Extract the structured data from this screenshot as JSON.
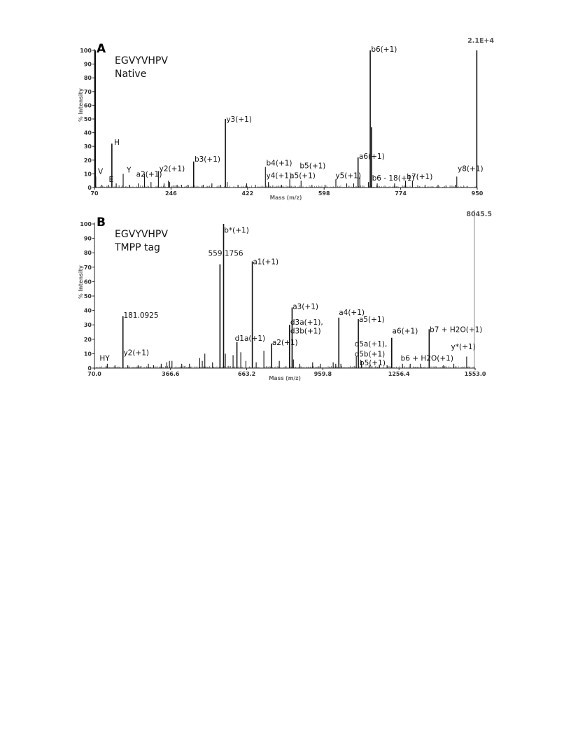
{
  "chart_data": [
    {
      "type": "bar",
      "panel_label": "A",
      "sequence": "EGVYVHPV",
      "subtitle": "Native",
      "xlabel": "Mass (m/z)",
      "ylabel": "% Intensity",
      "max_intensity_label": "2.1E+4",
      "xlim": [
        70,
        950
      ],
      "ylim": [
        0,
        100
      ],
      "x_ticks": [
        "70",
        "246",
        "422",
        "598",
        "774",
        "950"
      ],
      "y_ticks": [
        "0",
        "10",
        "20",
        "30",
        "40",
        "50",
        "60",
        "70",
        "80",
        "90",
        "100"
      ],
      "peaks": [
        {
          "mz": 72,
          "intensity": 100
        },
        {
          "mz": 73,
          "intensity": 8
        },
        {
          "mz": 86,
          "intensity": 2
        },
        {
          "mz": 102,
          "intensity": 2
        },
        {
          "mz": 110,
          "intensity": 32
        },
        {
          "mz": 120,
          "intensity": 3
        },
        {
          "mz": 136,
          "intensity": 10
        },
        {
          "mz": 150,
          "intensity": 2
        },
        {
          "mz": 171,
          "intensity": 3
        },
        {
          "mz": 185,
          "intensity": 10
        },
        {
          "mz": 200,
          "intensity": 4
        },
        {
          "mz": 217,
          "intensity": 12
        },
        {
          "mz": 230,
          "intensity": 3
        },
        {
          "mz": 240,
          "intensity": 5
        },
        {
          "mz": 243,
          "intensity": 4
        },
        {
          "mz": 260,
          "intensity": 2
        },
        {
          "mz": 270,
          "intensity": 2
        },
        {
          "mz": 285,
          "intensity": 2
        },
        {
          "mz": 298,
          "intensity": 19
        },
        {
          "mz": 320,
          "intensity": 2
        },
        {
          "mz": 340,
          "intensity": 3
        },
        {
          "mz": 360,
          "intensity": 2
        },
        {
          "mz": 371,
          "intensity": 50
        },
        {
          "mz": 375,
          "intensity": 4
        },
        {
          "mz": 400,
          "intensity": 2
        },
        {
          "mz": 420,
          "intensity": 3
        },
        {
          "mz": 440,
          "intensity": 2
        },
        {
          "mz": 463,
          "intensity": 15
        },
        {
          "mz": 470,
          "intensity": 4
        },
        {
          "mz": 500,
          "intensity": 2
        },
        {
          "mz": 519,
          "intensity": 6
        },
        {
          "mz": 545,
          "intensity": 5
        },
        {
          "mz": 570,
          "intensity": 2
        },
        {
          "mz": 600,
          "intensity": 2
        },
        {
          "mz": 625,
          "intensity": 6
        },
        {
          "mz": 650,
          "intensity": 3
        },
        {
          "mz": 666,
          "intensity": 3
        },
        {
          "mz": 676,
          "intensity": 22
        },
        {
          "mz": 680,
          "intensity": 8
        },
        {
          "mz": 700,
          "intensity": 4
        },
        {
          "mz": 704,
          "intensity": 100
        },
        {
          "mz": 707,
          "intensity": 44
        },
        {
          "mz": 720,
          "intensity": 3
        },
        {
          "mz": 760,
          "intensity": 3
        },
        {
          "mz": 785,
          "intensity": 5
        },
        {
          "mz": 801,
          "intensity": 5
        },
        {
          "mz": 830,
          "intensity": 2
        },
        {
          "mz": 860,
          "intensity": 2
        },
        {
          "mz": 900,
          "intensity": 2
        },
        {
          "mz": 903,
          "intensity": 8
        },
        {
          "mz": 949,
          "intensity": 100
        }
      ],
      "annotations": [
        {
          "text": "V",
          "mz": 78,
          "intensity": 10
        },
        {
          "text": "E",
          "mz": 103,
          "intensity": 4
        },
        {
          "text": "H",
          "mz": 115,
          "intensity": 31
        },
        {
          "text": "Y",
          "mz": 144,
          "intensity": 11
        },
        {
          "text": "a2(+1)",
          "mz": 166,
          "intensity": 8
        },
        {
          "text": "y2(+1)",
          "mz": 219,
          "intensity": 12
        },
        {
          "text": "b3(+1)",
          "mz": 300,
          "intensity": 19
        },
        {
          "text": "y3(+1)",
          "mz": 373,
          "intensity": 48
        },
        {
          "text": "b4(+1)",
          "mz": 465,
          "intensity": 16
        },
        {
          "text": "y4(+1)",
          "mz": 465,
          "intensity": 7
        },
        {
          "text": "b5(+1)",
          "mz": 542,
          "intensity": 14
        },
        {
          "text": "a5(+1)",
          "mz": 519,
          "intensity": 7
        },
        {
          "text": "y5(+1)",
          "mz": 624,
          "intensity": 7
        },
        {
          "text": "a6(+1)",
          "mz": 678,
          "intensity": 21
        },
        {
          "text": "b6(+1)",
          "mz": 706,
          "intensity": 99
        },
        {
          "text": "b6 - 18(+1)",
          "mz": 708,
          "intensity": 5
        },
        {
          "text": "b7(+1)",
          "mz": 788,
          "intensity": 6
        },
        {
          "text": "y8(+1)",
          "mz": 905,
          "intensity": 12
        }
      ]
    },
    {
      "type": "bar",
      "panel_label": "B",
      "sequence": "EGVYVHPV",
      "subtitle": "TMPP tag",
      "xlabel": "Mass (m/z)",
      "ylabel": "% Intensity",
      "max_intensity_label": "8045.5",
      "xlim": [
        70.0,
        1553.0
      ],
      "ylim": [
        0,
        100
      ],
      "x_ticks": [
        "70.0",
        "366.6",
        "663.2",
        "959.8",
        "1256.4",
        "1553.0"
      ],
      "y_ticks": [
        "0",
        "10",
        "20",
        "30",
        "40",
        "50",
        "60",
        "70",
        "80",
        "90",
        "100"
      ],
      "peaks": [
        {
          "mz": 120,
          "intensity": 3
        },
        {
          "mz": 150,
          "intensity": 2
        },
        {
          "mz": 181,
          "intensity": 36
        },
        {
          "mz": 200,
          "intensity": 2
        },
        {
          "mz": 240,
          "intensity": 2
        },
        {
          "mz": 280,
          "intensity": 3
        },
        {
          "mz": 300,
          "intensity": 2
        },
        {
          "mz": 330,
          "intensity": 3
        },
        {
          "mz": 352,
          "intensity": 4
        },
        {
          "mz": 362,
          "intensity": 5
        },
        {
          "mz": 372,
          "intensity": 5
        },
        {
          "mz": 410,
          "intensity": 3
        },
        {
          "mz": 440,
          "intensity": 3
        },
        {
          "mz": 480,
          "intensity": 7
        },
        {
          "mz": 490,
          "intensity": 5
        },
        {
          "mz": 500,
          "intensity": 10
        },
        {
          "mz": 530,
          "intensity": 4
        },
        {
          "mz": 559,
          "intensity": 72
        },
        {
          "mz": 573,
          "intensity": 100
        },
        {
          "mz": 580,
          "intensity": 10
        },
        {
          "mz": 610,
          "intensity": 9
        },
        {
          "mz": 625,
          "intensity": 18
        },
        {
          "mz": 640,
          "intensity": 11
        },
        {
          "mz": 660,
          "intensity": 5
        },
        {
          "mz": 685,
          "intensity": 74
        },
        {
          "mz": 700,
          "intensity": 4
        },
        {
          "mz": 730,
          "intensity": 12
        },
        {
          "mz": 760,
          "intensity": 17
        },
        {
          "mz": 790,
          "intensity": 5
        },
        {
          "mz": 830,
          "intensity": 30
        },
        {
          "mz": 840,
          "intensity": 42
        },
        {
          "mz": 845,
          "intensity": 6
        },
        {
          "mz": 870,
          "intensity": 3
        },
        {
          "mz": 920,
          "intensity": 4
        },
        {
          "mz": 950,
          "intensity": 3
        },
        {
          "mz": 1000,
          "intensity": 4
        },
        {
          "mz": 1010,
          "intensity": 3
        },
        {
          "mz": 1022,
          "intensity": 35
        },
        {
          "mz": 1030,
          "intensity": 3
        },
        {
          "mz": 1090,
          "intensity": 8
        },
        {
          "mz": 1098,
          "intensity": 34
        },
        {
          "mz": 1110,
          "intensity": 5
        },
        {
          "mz": 1140,
          "intensity": 2
        },
        {
          "mz": 1180,
          "intensity": 2
        },
        {
          "mz": 1210,
          "intensity": 2
        },
        {
          "mz": 1228,
          "intensity": 21
        },
        {
          "mz": 1270,
          "intensity": 3
        },
        {
          "mz": 1300,
          "intensity": 3
        },
        {
          "mz": 1340,
          "intensity": 3
        },
        {
          "mz": 1374,
          "intensity": 27
        },
        {
          "mz": 1430,
          "intensity": 2
        },
        {
          "mz": 1470,
          "intensity": 3
        },
        {
          "mz": 1520,
          "intensity": 8
        }
      ],
      "max_marker_mz": 1550,
      "annotations": [
        {
          "text": "HY",
          "mz": 90,
          "intensity": 5
        },
        {
          "text": "y2(+1)",
          "mz": 183,
          "intensity": 9
        },
        {
          "text": "181.0925",
          "mz": 183,
          "intensity": 35
        },
        {
          "text": "559.1756",
          "mz": 513,
          "intensity": 78
        },
        {
          "text": "b*(+1)",
          "mz": 575,
          "intensity": 94
        },
        {
          "text": "d1a(+1)",
          "mz": 617,
          "intensity": 19
        },
        {
          "text": "a1(+1)",
          "mz": 687,
          "intensity": 72
        },
        {
          "text": "a2(+1)",
          "mz": 762,
          "intensity": 16
        },
        {
          "text": "a3(+1)",
          "mz": 842,
          "intensity": 41
        },
        {
          "text": "d3a(+1),",
          "mz": 833,
          "intensity": 30
        },
        {
          "text": "d3b(+1)",
          "mz": 833,
          "intensity": 24
        },
        {
          "text": "a4(+1)",
          "mz": 1022,
          "intensity": 37
        },
        {
          "text": "a5(+1)",
          "mz": 1100,
          "intensity": 32
        },
        {
          "text": "d5a(+1),",
          "mz": 1083,
          "intensity": 15
        },
        {
          "text": "d5b(+1)",
          "mz": 1083,
          "intensity": 8
        },
        {
          "text": "b5(+1)",
          "mz": 1103,
          "intensity": 2
        },
        {
          "text": "a6(+1)",
          "mz": 1230,
          "intensity": 24
        },
        {
          "text": "b6 + H2O(+1)",
          "mz": 1263,
          "intensity": 5
        },
        {
          "text": "b7 + H2O(+1)",
          "mz": 1376,
          "intensity": 25
        },
        {
          "text": "y*(+1)",
          "mz": 1459,
          "intensity": 13
        }
      ]
    }
  ]
}
